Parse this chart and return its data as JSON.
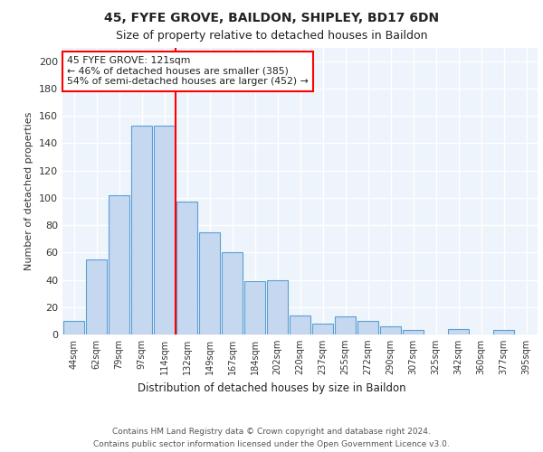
{
  "title1": "45, FYFE GROVE, BAILDON, SHIPLEY, BD17 6DN",
  "title2": "Size of property relative to detached houses in Baildon",
  "xlabel": "Distribution of detached houses by size in Baildon",
  "ylabel": "Number of detached properties",
  "categories": [
    "44sqm",
    "62sqm",
    "79sqm",
    "97sqm",
    "114sqm",
    "132sqm",
    "149sqm",
    "167sqm",
    "184sqm",
    "202sqm",
    "220sqm",
    "237sqm",
    "255sqm",
    "272sqm",
    "290sqm",
    "307sqm",
    "325sqm",
    "342sqm",
    "360sqm",
    "377sqm",
    "395sqm"
  ],
  "values": [
    10,
    55,
    102,
    153,
    153,
    97,
    75,
    60,
    39,
    40,
    14,
    8,
    13,
    10,
    6,
    3,
    0,
    4,
    0,
    3,
    0
  ],
  "bar_color": "#c5d8f0",
  "bar_edge_color": "#5a9fd4",
  "redline_index": 4.5,
  "annotation_title": "45 FYFE GROVE: 121sqm",
  "annotation_line1": "← 46% of detached houses are smaller (385)",
  "annotation_line2": "54% of semi-detached houses are larger (452) →",
  "footer1": "Contains HM Land Registry data © Crown copyright and database right 2024.",
  "footer2": "Contains public sector information licensed under the Open Government Licence v3.0.",
  "ylim": [
    0,
    210
  ],
  "yticks": [
    0,
    20,
    40,
    60,
    80,
    100,
    120,
    140,
    160,
    180,
    200
  ],
  "background_color": "#eef4fb",
  "grid_color": "#ffffff",
  "fig_bg": "#ffffff"
}
